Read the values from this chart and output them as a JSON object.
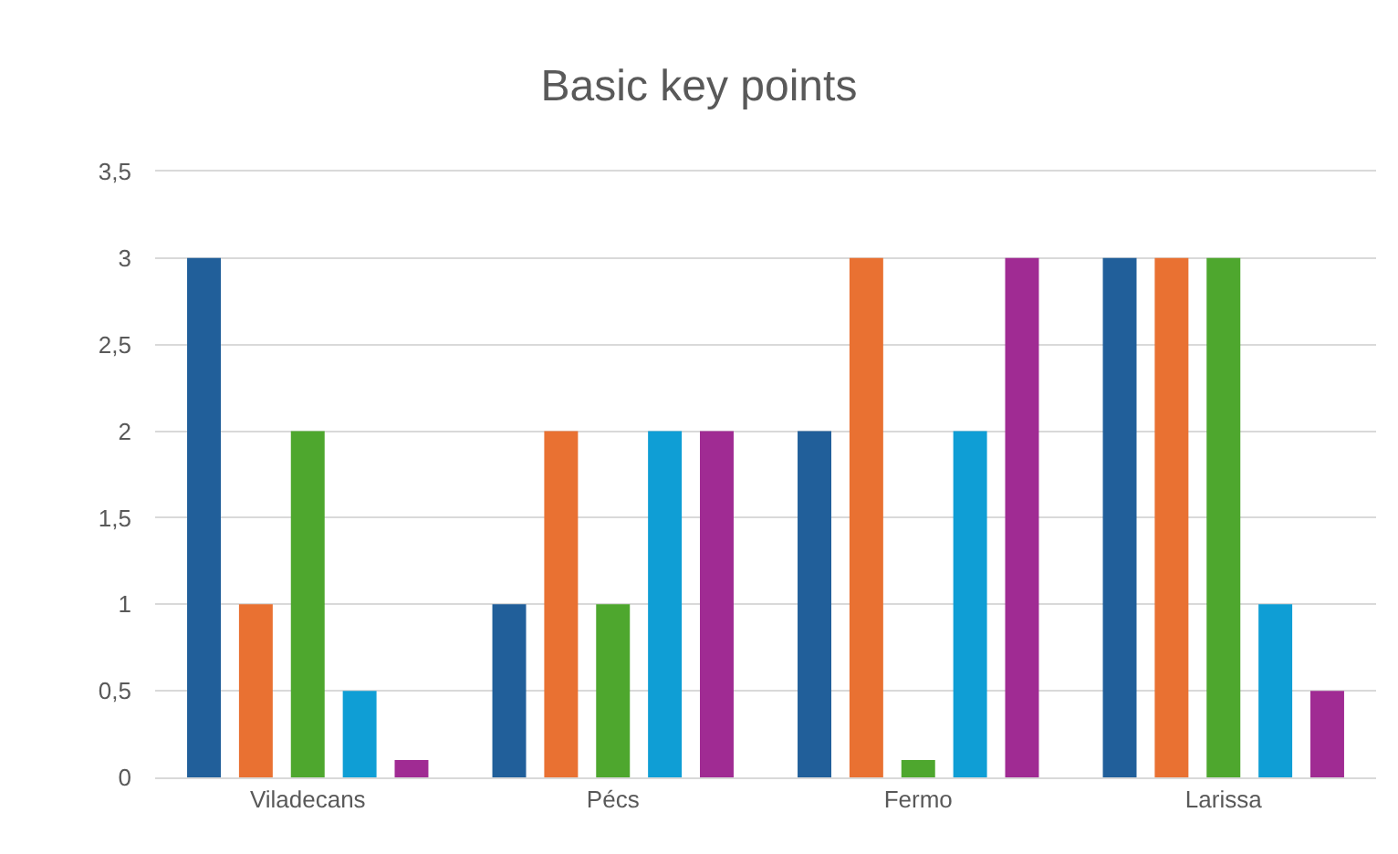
{
  "chart_data": {
    "type": "bar",
    "title": "Basic key points",
    "categories": [
      "Viladecans",
      "Pécs",
      "Fermo",
      "Larissa"
    ],
    "series": [
      {
        "color": "#215f9a",
        "values": [
          3,
          1,
          2,
          3
        ]
      },
      {
        "color": "#e97132",
        "values": [
          1,
          2,
          3,
          3
        ]
      },
      {
        "color": "#4ea72e",
        "values": [
          2,
          1,
          0.1,
          3
        ]
      },
      {
        "color": "#0f9ed5",
        "values": [
          0.5,
          2,
          2,
          1
        ]
      },
      {
        "color": "#a02b93",
        "values": [
          0.1,
          2,
          3,
          0.5
        ]
      }
    ],
    "ylim": [
      0,
      3.5
    ],
    "yticks": [
      0,
      {
        "value": 0.5,
        "label": "0,5"
      },
      1,
      {
        "value": 1.5,
        "label": "1,5"
      },
      2,
      {
        "value": 2.5,
        "label": "2,5"
      },
      3,
      {
        "value": 3.5,
        "label": "3,5"
      }
    ],
    "grid": "y"
  }
}
